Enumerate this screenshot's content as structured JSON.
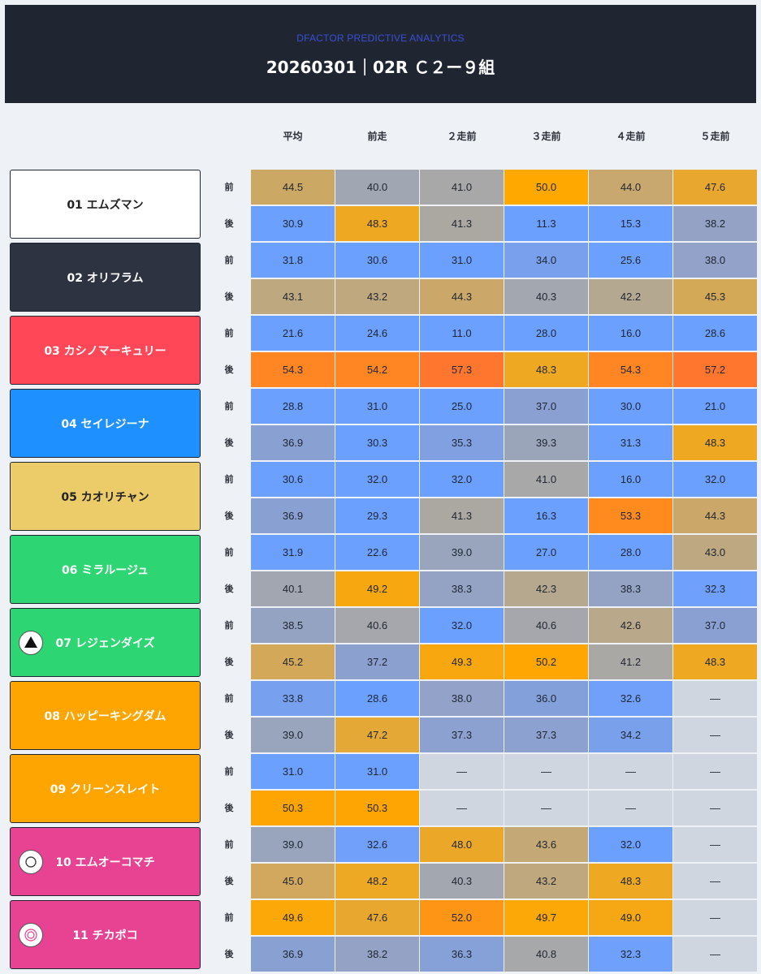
{
  "header": {
    "brand": "DFACTOR PREDICTIVE ANALYTICS",
    "title": "20260301｜02R Ｃ２ー９組"
  },
  "columns": [
    "平均",
    "前走",
    "２走前",
    "３走前",
    "４走前",
    "５走前"
  ],
  "row_labels": {
    "front": "前",
    "back": "後"
  },
  "horses": [
    {
      "name": "01 エムズマン",
      "bg": "#ffffff",
      "fg": "#222222",
      "mark": "",
      "front": [
        "44.5",
        "40.0",
        "41.0",
        "50.0",
        "44.0",
        "47.6"
      ],
      "back": [
        "30.9",
        "48.3",
        "41.3",
        "11.3",
        "15.3",
        "38.2"
      ]
    },
    {
      "name": "02 オリフラム",
      "bg": "#2d3341",
      "fg": "#ffffff",
      "mark": "",
      "front": [
        "31.8",
        "30.6",
        "31.0",
        "34.0",
        "25.6",
        "38.0"
      ],
      "back": [
        "43.1",
        "43.2",
        "44.3",
        "40.3",
        "42.2",
        "45.3"
      ]
    },
    {
      "name": "03 カシノマーキュリー",
      "bg": "#ff4757",
      "fg": "#ffffff",
      "mark": "",
      "front": [
        "21.6",
        "24.6",
        "11.0",
        "28.0",
        "16.0",
        "28.6"
      ],
      "back": [
        "54.3",
        "54.2",
        "57.3",
        "48.3",
        "54.3",
        "57.2"
      ]
    },
    {
      "name": "04 セイレジーナ",
      "bg": "#1e90ff",
      "fg": "#ffffff",
      "mark": "",
      "front": [
        "28.8",
        "31.0",
        "25.0",
        "37.0",
        "30.0",
        "21.0"
      ],
      "back": [
        "36.9",
        "30.3",
        "35.3",
        "39.3",
        "31.3",
        "48.3"
      ]
    },
    {
      "name": "05 カオリチャン",
      "bg": "#eccc68",
      "fg": "#222222",
      "mark": "",
      "front": [
        "30.6",
        "32.0",
        "32.0",
        "41.0",
        "16.0",
        "32.0"
      ],
      "back": [
        "36.9",
        "29.3",
        "41.3",
        "16.3",
        "53.3",
        "44.3"
      ]
    },
    {
      "name": "06 ミラルージュ",
      "bg": "#2ed573",
      "fg": "#ffffff",
      "mark": "",
      "front": [
        "31.9",
        "22.6",
        "39.0",
        "27.0",
        "28.0",
        "43.0"
      ],
      "back": [
        "40.1",
        "49.2",
        "38.3",
        "42.3",
        "38.3",
        "32.3"
      ]
    },
    {
      "name": "07 レジェンダイズ",
      "bg": "#2ed573",
      "fg": "#ffffff",
      "mark": "triangle",
      "front": [
        "38.5",
        "40.6",
        "32.0",
        "40.6",
        "42.6",
        "37.0"
      ],
      "back": [
        "45.2",
        "37.2",
        "49.3",
        "50.2",
        "41.2",
        "48.3"
      ]
    },
    {
      "name": "08 ハッピーキングダム",
      "bg": "#ffa502",
      "fg": "#ffffff",
      "mark": "",
      "front": [
        "33.8",
        "28.6",
        "38.0",
        "36.0",
        "32.6",
        "—"
      ],
      "back": [
        "39.0",
        "47.2",
        "37.3",
        "37.3",
        "34.2",
        "—"
      ]
    },
    {
      "name": "09 クリーンスレイト",
      "bg": "#ffa502",
      "fg": "#ffffff",
      "mark": "",
      "front": [
        "31.0",
        "31.0",
        "—",
        "—",
        "—",
        "—"
      ],
      "back": [
        "50.3",
        "50.3",
        "—",
        "—",
        "—",
        "—"
      ]
    },
    {
      "name": "10 エムオーコマチ",
      "bg": "#e84393",
      "fg": "#ffffff",
      "mark": "circle",
      "front": [
        "39.0",
        "32.6",
        "48.0",
        "43.6",
        "32.0",
        "—"
      ],
      "back": [
        "45.0",
        "48.2",
        "40.3",
        "43.2",
        "48.3",
        "—"
      ]
    },
    {
      "name": "11 チカポコ",
      "bg": "#e84393",
      "fg": "#ffffff",
      "mark": "double-circle",
      "front": [
        "49.6",
        "47.6",
        "52.0",
        "49.7",
        "49.0",
        "—"
      ],
      "back": [
        "36.9",
        "38.2",
        "36.3",
        "40.8",
        "32.3",
        "—"
      ]
    }
  ]
}
